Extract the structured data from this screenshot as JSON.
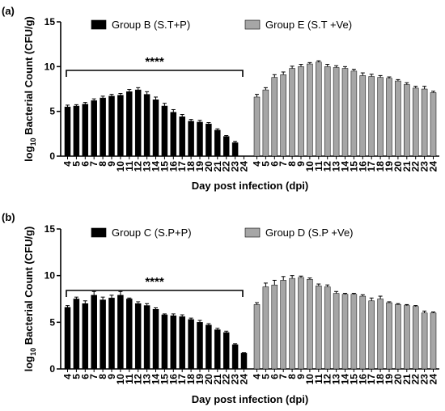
{
  "colors": {
    "black_group": "#000000",
    "grey_group": "#a6a6a6",
    "axis": "#000000"
  },
  "chart_data": [
    {
      "type": "bar",
      "panel_label": "(a)",
      "xlabel": "Day post infection (dpi)",
      "ylabel_main": "log",
      "ylabel_sub": "10",
      "ylabel_rest": " Bacterial Count (CFU/g)",
      "ylim": [
        0,
        15
      ],
      "yticks": [
        "0",
        "5",
        "10",
        "15"
      ],
      "significance": "****",
      "categories": [
        "4",
        "5",
        "6",
        "7",
        "8",
        "9",
        "10",
        "11",
        "12",
        "13",
        "14",
        "15",
        "16",
        "17",
        "18",
        "19",
        "20",
        "21",
        "22",
        "23",
        "24"
      ],
      "series": [
        {
          "name": "Group B (S.T+P)",
          "color": "#000000",
          "values": [
            5.5,
            5.6,
            5.8,
            6.2,
            6.5,
            6.7,
            6.8,
            7.2,
            7.4,
            6.9,
            6.3,
            5.6,
            4.9,
            4.4,
            3.9,
            3.8,
            3.6,
            2.9,
            2.2,
            1.5,
            0
          ],
          "errors": [
            0.2,
            0.15,
            0.2,
            0.2,
            0.2,
            0.2,
            0.2,
            0.25,
            0.25,
            0.3,
            0.3,
            0.3,
            0.3,
            0.25,
            0.2,
            0.2,
            0.15,
            0.15,
            0.1,
            0.15,
            0
          ]
        },
        {
          "name": "Group E (S.T +Ve)",
          "color": "#a6a6a6",
          "values": [
            6.6,
            7.4,
            8.8,
            9.1,
            9.8,
            10.0,
            10.3,
            10.5,
            10.0,
            9.9,
            9.8,
            9.5,
            9.0,
            8.9,
            8.8,
            8.7,
            8.4,
            8.0,
            7.6,
            7.5,
            7.1
          ],
          "errors": [
            0.3,
            0.25,
            0.3,
            0.3,
            0.25,
            0.25,
            0.15,
            0.15,
            0.25,
            0.2,
            0.2,
            0.2,
            0.3,
            0.25,
            0.2,
            0.15,
            0.15,
            0.2,
            0.2,
            0.3,
            0.15
          ]
        }
      ]
    },
    {
      "type": "bar",
      "panel_label": "(b)",
      "xlabel": "Day post infection (dpi)",
      "ylabel_main": "log",
      "ylabel_sub": "10",
      "ylabel_rest": " Bacterial Count (CFU/g)",
      "ylim": [
        0,
        15
      ],
      "yticks": [
        "0",
        "5",
        "10",
        "15"
      ],
      "significance": "****",
      "categories": [
        "4",
        "5",
        "6",
        "7",
        "8",
        "9",
        "10",
        "11",
        "12",
        "13",
        "14",
        "15",
        "16",
        "17",
        "18",
        "19",
        "20",
        "21",
        "22",
        "23",
        "24"
      ],
      "series": [
        {
          "name": "Group C (S.P+P)",
          "color": "#000000",
          "values": [
            6.6,
            7.5,
            7.0,
            7.9,
            7.4,
            7.6,
            7.9,
            7.5,
            7.0,
            6.8,
            6.4,
            5.8,
            5.7,
            5.6,
            5.3,
            5.0,
            4.7,
            4.2,
            3.9,
            2.6,
            1.7
          ],
          "errors": [
            0.2,
            0.2,
            0.3,
            0.4,
            0.3,
            0.3,
            0.4,
            0.1,
            0.2,
            0.2,
            0.15,
            0.1,
            0.2,
            0.2,
            0.15,
            0.2,
            0.15,
            0.15,
            0.15,
            0.1,
            0.05
          ]
        },
        {
          "name": "Group D (S.P +Ve)",
          "color": "#a6a6a6",
          "values": [
            6.9,
            8.8,
            9.0,
            9.5,
            9.7,
            9.8,
            9.6,
            8.9,
            8.8,
            8.1,
            8.0,
            8.0,
            7.8,
            7.3,
            7.5,
            7.1,
            6.9,
            6.8,
            6.7,
            6.0,
            6.0
          ],
          "errors": [
            0.2,
            0.4,
            0.5,
            0.4,
            0.3,
            0.15,
            0.15,
            0.2,
            0.2,
            0.2,
            0.1,
            0.1,
            0.15,
            0.3,
            0.3,
            0.1,
            0.1,
            0.1,
            0.1,
            0.2,
            0.1
          ]
        }
      ]
    }
  ]
}
